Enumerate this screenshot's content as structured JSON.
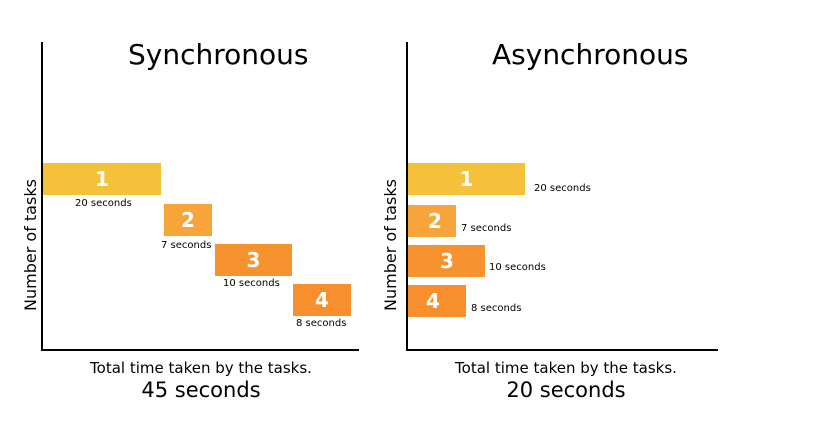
{
  "colors": {
    "task_1": "#f5c13a",
    "task_2": "#f7a53a",
    "task_3": "#f7932f",
    "task_4": "#f7902c"
  },
  "synchronous": {
    "title": "Synchronous",
    "ylabel": "Number of tasks",
    "caption": "Total time taken by the tasks.",
    "total": "45 seconds",
    "tasks": [
      {
        "label": "1",
        "duration_label": "20 seconds",
        "start_s": 0,
        "duration_s": 20
      },
      {
        "label": "2",
        "duration_label": "7 seconds",
        "start_s": 20,
        "duration_s": 7
      },
      {
        "label": "3",
        "duration_label": "10 seconds",
        "start_s": 27,
        "duration_s": 10
      },
      {
        "label": "4",
        "duration_label": "8 seconds",
        "start_s": 37,
        "duration_s": 8
      }
    ]
  },
  "asynchronous": {
    "title": "Asynchronous",
    "ylabel": "Number of tasks",
    "caption": "Total time taken by the tasks.",
    "total": "20 seconds",
    "tasks": [
      {
        "label": "1",
        "duration_label": "20 seconds",
        "start_s": 0,
        "duration_s": 20
      },
      {
        "label": "2",
        "duration_label": "7 seconds",
        "start_s": 0,
        "duration_s": 7
      },
      {
        "label": "3",
        "duration_label": "10 seconds",
        "start_s": 0,
        "duration_s": 10
      },
      {
        "label": "4",
        "duration_label": "8 seconds",
        "start_s": 0,
        "duration_s": 8
      }
    ]
  }
}
